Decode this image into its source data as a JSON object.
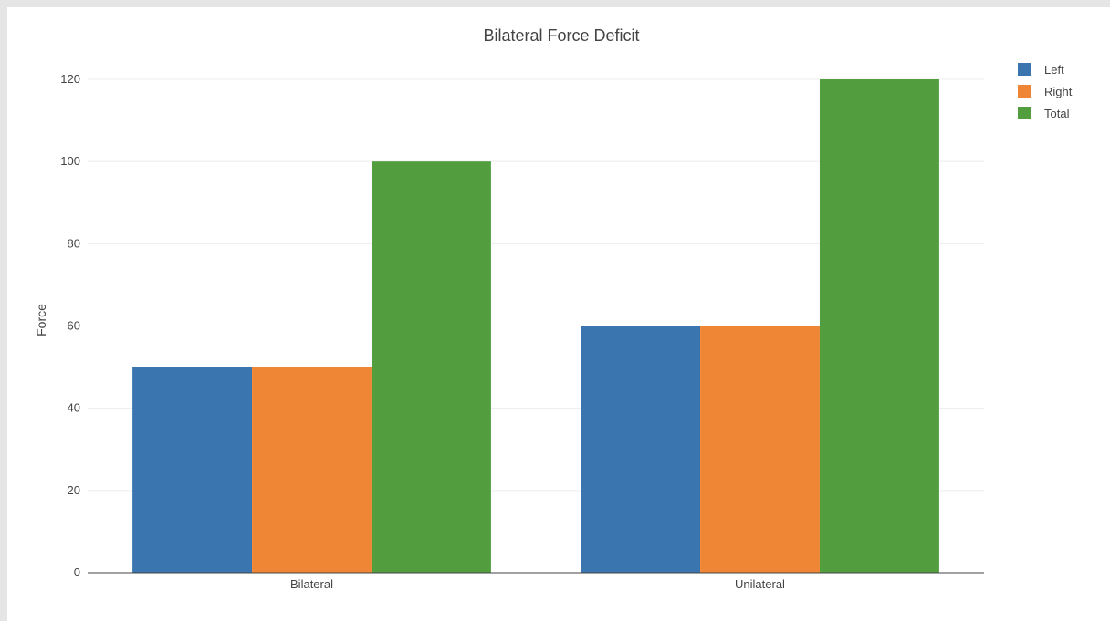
{
  "chart_data": {
    "type": "bar",
    "title": "Bilateral Force Deficit",
    "xlabel": "",
    "ylabel": "Force",
    "categories": [
      "Bilateral",
      "Unilateral"
    ],
    "series": [
      {
        "name": "Left",
        "values": [
          50,
          60
        ],
        "color": "#3a75af"
      },
      {
        "name": "Right",
        "values": [
          50,
          60
        ],
        "color": "#ef8636"
      },
      {
        "name": "Total",
        "values": [
          100,
          120
        ],
        "color": "#529e3f"
      }
    ],
    "ylim": [
      0,
      120
    ],
    "yticks": [
      0,
      20,
      40,
      60,
      80,
      100,
      120
    ],
    "grid": true,
    "legend": "top-right"
  }
}
